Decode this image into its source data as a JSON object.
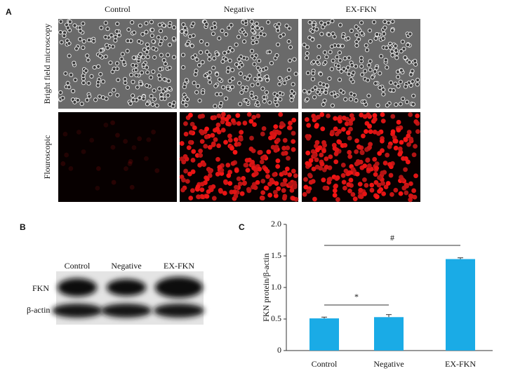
{
  "panel_a": {
    "label": "A",
    "columns": [
      "Control",
      "Negative",
      "EX-FKN"
    ],
    "rows": [
      "Bright field microscopy",
      "Flouroscopic"
    ]
  },
  "panel_b": {
    "label": "B",
    "lanes": [
      "Control",
      "Negative",
      "EX-FKN"
    ],
    "bands": [
      "FKN",
      "β-actin"
    ]
  },
  "panel_c": {
    "label": "C"
  },
  "chart_data": {
    "type": "bar",
    "ylabel": "FKN protein/β-actin",
    "categories": [
      "Control",
      "Negative",
      "EX-FKN"
    ],
    "values": [
      0.51,
      0.53,
      1.45
    ],
    "errors": [
      0.02,
      0.04,
      0.02
    ],
    "color": "#1aabe6",
    "ylim": [
      0,
      2.0
    ],
    "yticks": [
      0,
      0.5,
      {
        "value": 1.0,
        "label": "1.0"
      },
      1.5,
      {
        "value": 2.0,
        "label": "2.0"
      }
    ],
    "annotations": [
      {
        "text": "*"
      },
      {
        "text": "#"
      }
    ]
  }
}
